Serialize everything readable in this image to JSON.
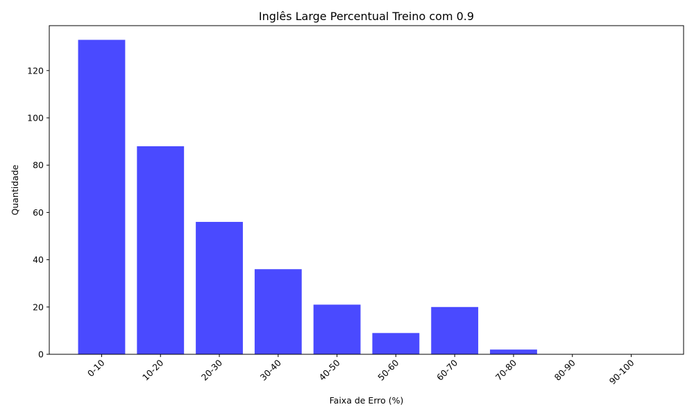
{
  "chart_data": {
    "type": "bar",
    "title": "Inglês Large Percentual Treino com 0.9",
    "xlabel": "Faixa de Erro (%)",
    "ylabel": "Quantidade",
    "categories": [
      "0-10",
      "10-20",
      "20-30",
      "30-40",
      "40-50",
      "50-60",
      "60-70",
      "70-80",
      "80-90",
      "90-100"
    ],
    "values": [
      133,
      88,
      56,
      36,
      21,
      9,
      20,
      2,
      0,
      0
    ],
    "ylim": [
      0,
      139
    ],
    "yticks": [
      0,
      20,
      40,
      60,
      80,
      100,
      120
    ],
    "grid": false,
    "bar_color": "#4a4aff"
  }
}
